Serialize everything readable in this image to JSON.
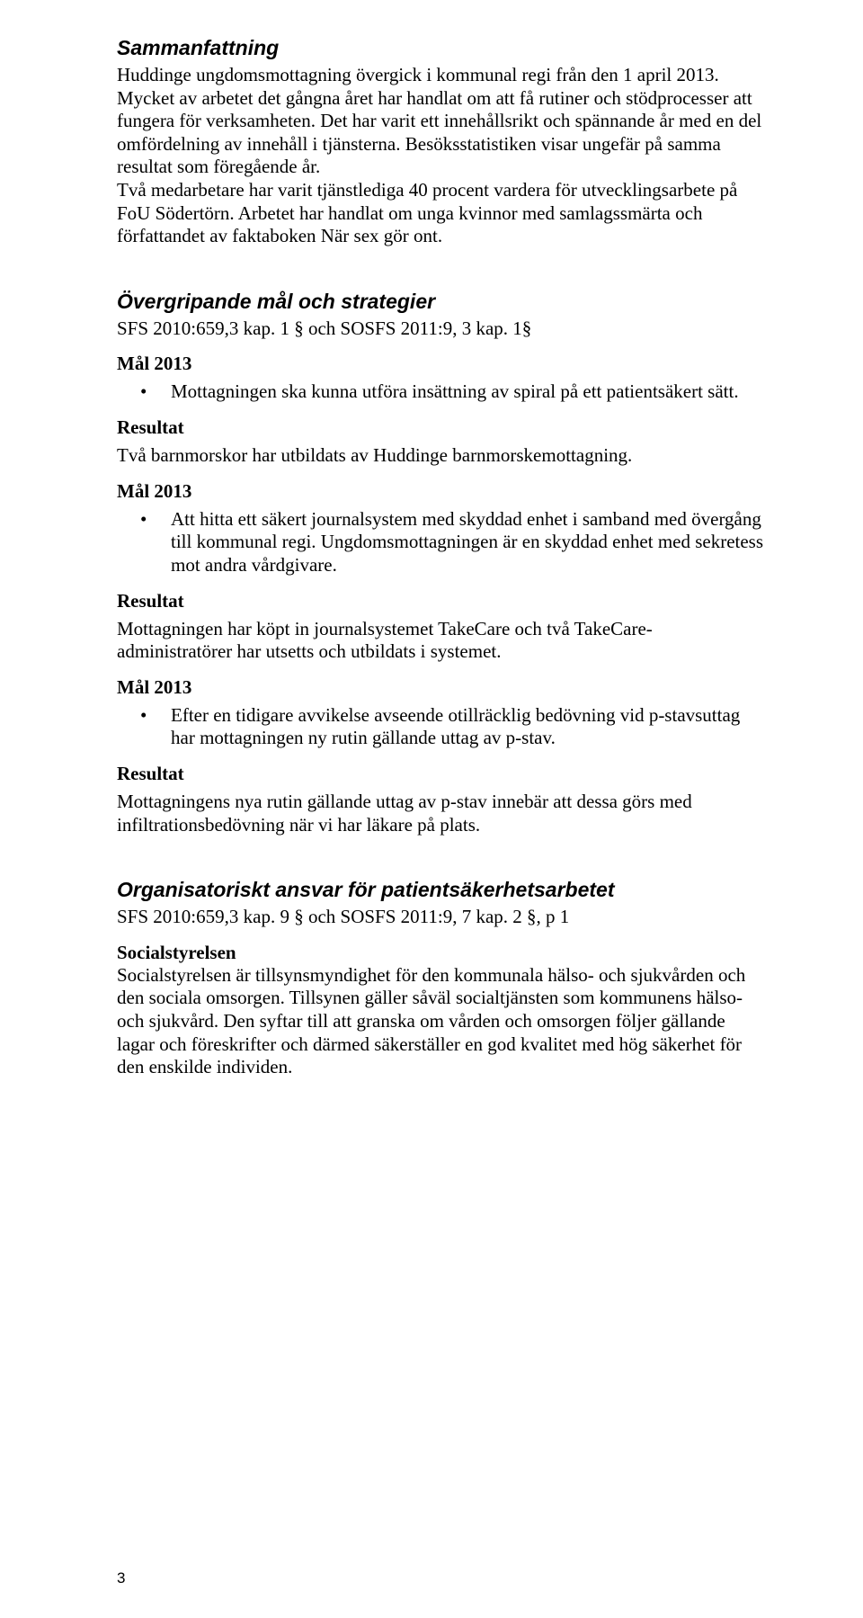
{
  "summary": {
    "title": "Sammanfattning",
    "body": "Huddinge ungdomsmottagning övergick i kommunal regi från den 1 april 2013. Mycket av arbetet det gångna året har handlat om att få rutiner och stödprocesser att fungera för verksamheten. Det har varit ett innehållsrikt och spännande år med en del omfördelning av innehåll i tjänsterna. Besöksstatistiken visar ungefär på samma resultat som föregående år.\nTvå medarbetare har varit tjänstlediga 40 procent vardera för utvecklingsarbete på FoU Södertörn. Arbetet har handlat om unga kvinnor med samlagssmärta och författandet av faktaboken När sex gör ont."
  },
  "strategies": {
    "title": "Övergripande mål och strategier",
    "ref": "SFS 2010:659,3 kap. 1 § och SOSFS 2011:9, 3 kap. 1§",
    "goals": [
      {
        "goal_label": "Mål 2013",
        "bullet": "Mottagningen ska kunna utföra insättning av spiral på ett patientsäkert sätt.",
        "result_label": "Resultat",
        "result_text": "Två barnmorskor har utbildats av Huddinge barnmorskemottagning."
      },
      {
        "goal_label": "Mål 2013",
        "bullet": "Att hitta ett säkert journalsystem med skyddad enhet i samband med övergång till kommunal regi. Ungdomsmottagningen är en skyddad enhet med sekretess mot andra vårdgivare.",
        "result_label": "Resultat",
        "result_text": "Mottagningen har köpt in journalsystemet TakeCare och två TakeCare-administratörer har utsetts och utbildats i systemet."
      },
      {
        "goal_label": "Mål 2013",
        "bullet": "Efter en tidigare avvikelse avseende otillräcklig bedövning vid p-stavsuttag har mottagningen ny rutin gällande uttag av p-stav.",
        "result_label": "Resultat",
        "result_text": "Mottagningens nya rutin gällande uttag av p-stav innebär att dessa görs med infiltrationsbedövning när vi har läkare på plats."
      }
    ]
  },
  "org": {
    "title": "Organisatoriskt ansvar för patientsäkerhetsarbetet",
    "ref": "SFS 2010:659,3 kap. 9 § och SOSFS 2011:9, 7 kap. 2 §, p 1",
    "sub_heading": "Socialstyrelsen",
    "body": "Socialstyrelsen är tillsynsmyndighet för den kommunala hälso- och sjukvården och den sociala omsorgen. Tillsynen gäller såväl socialtjänsten som kommunens hälso- och sjukvård. Den syftar till att granska om vården och omsorgen följer gällande lagar och föreskrifter och därmed säkerställer en god kvalitet med hög säkerhet för den enskilde individen."
  },
  "page_number": "3"
}
